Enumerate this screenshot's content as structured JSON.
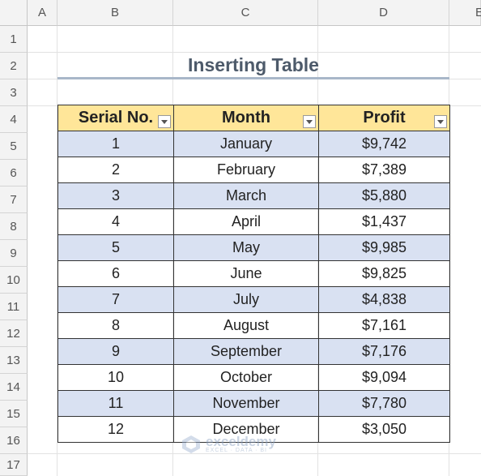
{
  "columns": [
    "A",
    "B",
    "C",
    "D",
    "E"
  ],
  "rows": [
    "1",
    "2",
    "3",
    "4",
    "5",
    "6",
    "7",
    "8",
    "9",
    "10",
    "11",
    "12",
    "13",
    "14",
    "15",
    "16",
    "17"
  ],
  "title": "Inserting Table",
  "table": {
    "headers": [
      "Serial No.",
      "Month",
      "Profit"
    ],
    "rows": [
      [
        "1",
        "January",
        "$9,742"
      ],
      [
        "2",
        "February",
        "$7,389"
      ],
      [
        "3",
        "March",
        "$5,880"
      ],
      [
        "4",
        "April",
        "$1,437"
      ],
      [
        "5",
        "May",
        "$9,985"
      ],
      [
        "6",
        "June",
        "$9,825"
      ],
      [
        "7",
        "July",
        "$4,838"
      ],
      [
        "8",
        "August",
        "$7,161"
      ],
      [
        "9",
        "September",
        "$7,176"
      ],
      [
        "10",
        "October",
        "$9,094"
      ],
      [
        "11",
        "November",
        "$7,780"
      ],
      [
        "12",
        "December",
        "$3,050"
      ]
    ]
  },
  "watermark": {
    "brand": "exceldemy",
    "tagline": "EXCEL · DATA · BI"
  },
  "colors": {
    "header_fill": "#ffe699",
    "band_fill": "#d9e1f2",
    "title_color": "#4d5a6a"
  }
}
